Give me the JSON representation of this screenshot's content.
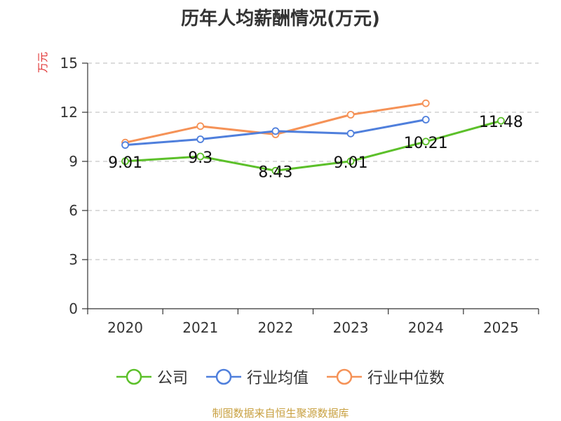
{
  "chart_data": {
    "type": "line",
    "title": "历年人均薪酬情况(万元)",
    "ylabel": "万元",
    "xlabel": "",
    "categories": [
      "2020",
      "2021",
      "2022",
      "2023",
      "2024",
      "2025"
    ],
    "ylim": [
      0,
      15
    ],
    "yticks": [
      0,
      3,
      6,
      9,
      12,
      15
    ],
    "grid": true,
    "legend_position": "bottom",
    "series": [
      {
        "name": "公司",
        "color": "#5cc02a",
        "values": [
          9.01,
          9.3,
          8.43,
          9.01,
          10.21,
          11.48
        ],
        "labels": [
          "9.01",
          "9.3",
          "8.43",
          "9.01",
          "10.21",
          "11.48"
        ]
      },
      {
        "name": "行业均值",
        "color": "#4f7fdc",
        "values": [
          10.0,
          10.35,
          10.85,
          10.7,
          11.55,
          null
        ]
      },
      {
        "name": "行业中位数",
        "color": "#f59257",
        "values": [
          10.15,
          11.15,
          10.65,
          11.85,
          12.55,
          null
        ]
      }
    ]
  },
  "footer": {
    "source": "制图数据来自恒生聚源数据库"
  }
}
